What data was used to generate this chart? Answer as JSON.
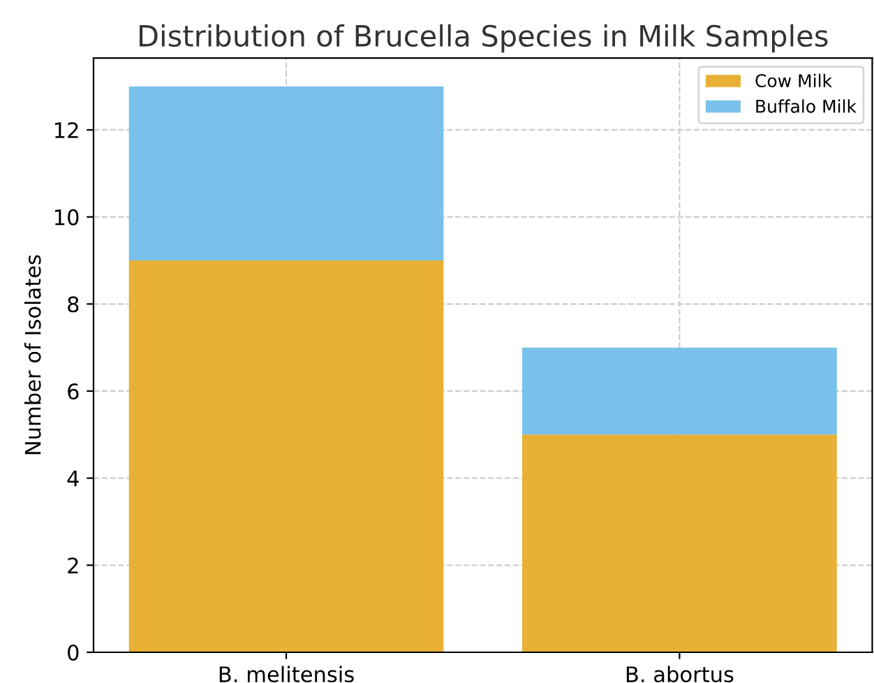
{
  "chart_data": {
    "type": "bar",
    "title": "Distribution of Brucella Species in Milk Samples",
    "ylabel": "Number of Isolates",
    "categories": [
      "B. melitensis",
      "B. abortus"
    ],
    "series": [
      {
        "name": "Cow Milk",
        "color": "#e8b034",
        "values": [
          9,
          5
        ]
      },
      {
        "name": "Buffalo Milk",
        "color": "#79c1ea",
        "values": [
          4,
          2
        ]
      }
    ],
    "stacked": true,
    "ylim": [
      0,
      13.65
    ],
    "yticks": [
      0,
      2,
      4,
      6,
      8,
      10,
      12
    ],
    "grid": true,
    "legend": "top right"
  }
}
